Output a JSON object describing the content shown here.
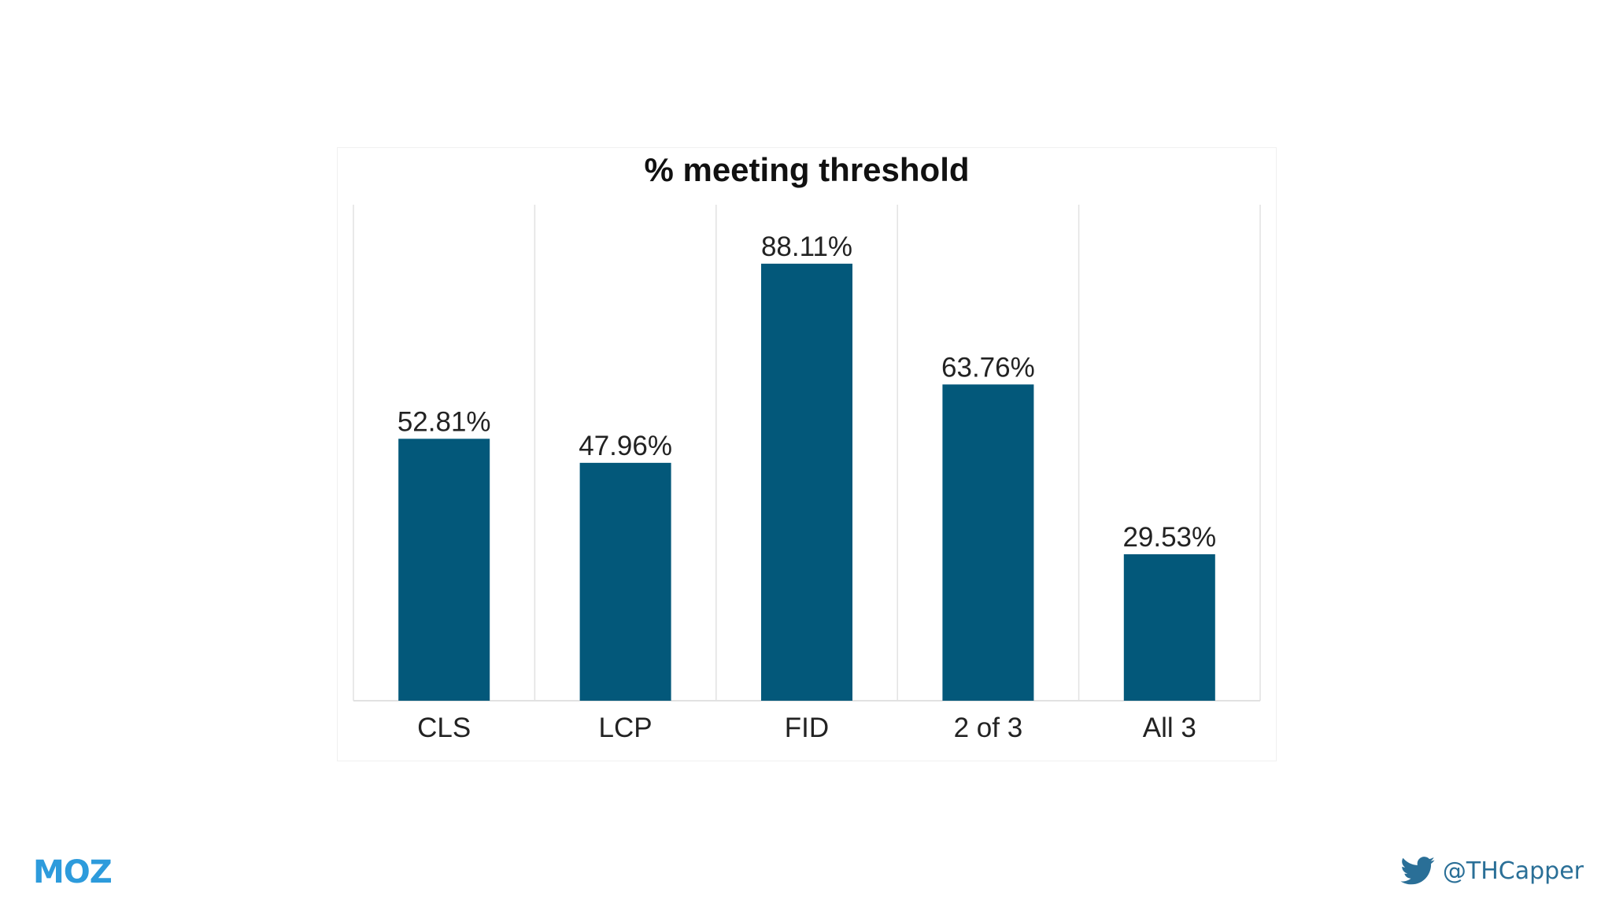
{
  "colors": {
    "bar": "#03587a",
    "grid": "#e2e2e2",
    "text": "#222222",
    "logo": "#2d9bdc",
    "handle": "#2a6f97"
  },
  "footer": {
    "logo_text": "MOZ",
    "twitter_icon": "twitter-bird-icon",
    "handle": "@THCapper"
  },
  "chart_data": {
    "type": "bar",
    "title": "% meeting threshold",
    "categories": [
      "CLS",
      "LCP",
      "FID",
      "2 of 3",
      "All 3"
    ],
    "values": [
      52.81,
      47.96,
      88.11,
      63.76,
      29.53
    ],
    "data_labels": [
      "52.81%",
      "47.96%",
      "88.11%",
      "63.76%",
      "29.53%"
    ],
    "ylim": [
      0,
      100
    ],
    "grid": true,
    "xlabel": "",
    "ylabel": ""
  }
}
